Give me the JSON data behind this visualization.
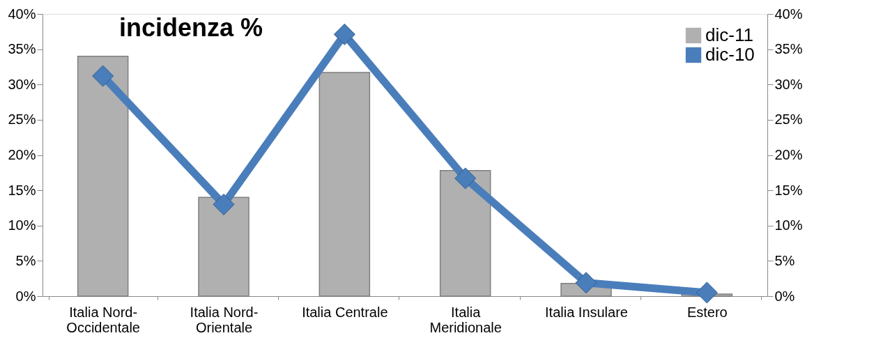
{
  "chart_data": {
    "type": "bar",
    "title": "incidenza %",
    "categories": [
      "Italia Nord-Occidentale",
      "Italia Nord-Orientale",
      "Italia Centrale",
      "Italia Meridionale",
      "Italia Insulare",
      "Estero"
    ],
    "series": [
      {
        "name": "dic-11",
        "color": "#b0b0b0",
        "values": [
          34.0,
          14.0,
          31.7,
          17.8,
          1.8,
          0.3
        ]
      },
      {
        "name": "dic-10",
        "type": "line",
        "axis": "y2",
        "color": "#4a7ebb",
        "marker": "diamond",
        "values": [
          31.2,
          13.0,
          37.1,
          16.7,
          1.9,
          0.5
        ]
      }
    ],
    "ylim": [
      0,
      40
    ],
    "yticks": [
      {
        "value": 0,
        "label": "0%"
      },
      {
        "value": 5,
        "label": "5%"
      },
      {
        "value": 10,
        "label": "10%"
      },
      {
        "value": 15,
        "label": "15%"
      },
      {
        "value": 20,
        "label": "20%"
      },
      {
        "value": 25,
        "label": "25%"
      },
      {
        "value": 30,
        "label": "30%"
      },
      {
        "value": 35,
        "label": "35%"
      },
      {
        "value": 40,
        "label": "40%"
      }
    ],
    "y2lim": [
      0,
      40
    ],
    "y2ticks": [
      {
        "value": 0,
        "label": "0%"
      },
      {
        "value": 5,
        "label": "5%"
      },
      {
        "value": 10,
        "label": "10%"
      },
      {
        "value": 15,
        "label": "15%"
      },
      {
        "value": 20,
        "label": "20%"
      },
      {
        "value": 25,
        "label": "25%"
      },
      {
        "value": 30,
        "label": "30%"
      },
      {
        "value": 35,
        "label": "35%"
      },
      {
        "value": 40,
        "label": "40%"
      }
    ],
    "grid": false,
    "legend": "top right"
  }
}
